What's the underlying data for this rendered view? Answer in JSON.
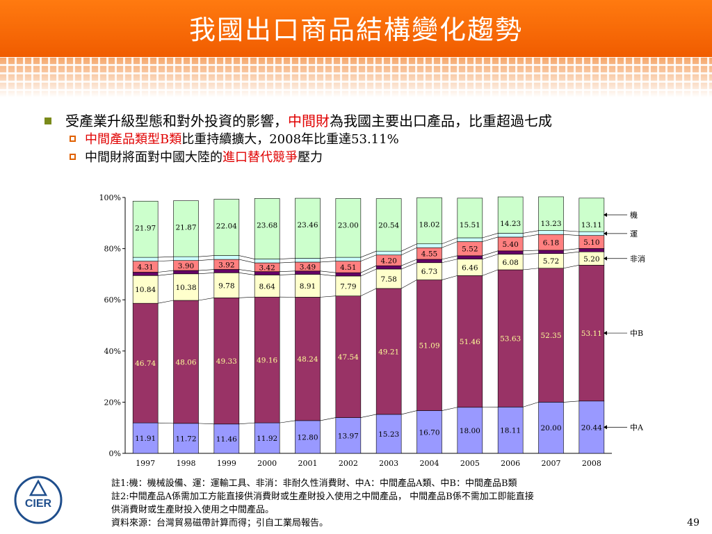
{
  "slide": {
    "title": "我國出口商品結構變化趨勢",
    "bullet1": {
      "before": "受產業升級型態和對外投資的影響，",
      "highlight": "中間財",
      "after": "為我國主要出口產品，比重超過七成"
    },
    "bullet2": {
      "highlight": "中間產品類型B類",
      "after": "比重持續擴大，2008年比重達53.11%"
    },
    "bullet3": {
      "before": "中間財將面對中國大陸的",
      "highlight": "進口替代競爭",
      "after": "壓力"
    },
    "notes": [
      "註1:機：機械設備、運：運輸工具、非消：非耐久性消費財、中A：中間產品A類、中B：中間產品B類",
      "註2:中間產品A係需加工方能直接供消費財或生產財投入使用之中間產品， 中間產品B係不需加工即能直接",
      "供消費財或生產財投入使用之中間產品。",
      "資料來源：台灣貿易磁帶計算而得；引自工業局報告。"
    ],
    "page_number": "49",
    "logo_text": "CIER"
  },
  "chart_data": {
    "type": "bar",
    "stacked": true,
    "categories": [
      "1997",
      "1998",
      "1999",
      "2000",
      "2001",
      "2002",
      "2003",
      "2004",
      "2005",
      "2006",
      "2007",
      "2008"
    ],
    "ylim": [
      0,
      100
    ],
    "yticks": [
      "0%",
      "20%",
      "40%",
      "60%",
      "80%",
      "100%"
    ],
    "series": [
      {
        "name": "中A",
        "color": "#9999ff",
        "label_color": "#000000",
        "values": [
          11.91,
          11.72,
          11.46,
          11.92,
          12.8,
          13.97,
          15.23,
          16.7,
          18.0,
          18.11,
          20.0,
          20.44
        ]
      },
      {
        "name": "中B",
        "color": "#993366",
        "label_color": "#ffff99",
        "values": [
          46.74,
          48.06,
          49.33,
          49.16,
          48.24,
          47.54,
          49.21,
          51.09,
          51.46,
          53.63,
          52.35,
          53.11
        ]
      },
      {
        "name": "",
        "color": "#ffffcc",
        "label_color": "#000000",
        "values": [
          10.84,
          10.38,
          9.78,
          8.64,
          8.91,
          7.79,
          7.58,
          6.73,
          6.46,
          6.08,
          5.72,
          5.2
        ]
      },
      {
        "name": "",
        "color": "#660066",
        "label_color": "#000000",
        "values": [
          1.3,
          1.3,
          1.3,
          1.3,
          1.3,
          1.3,
          1.3,
          1.3,
          1.3,
          1.3,
          1.3,
          1.3
        ]
      },
      {
        "name": "",
        "color": "#ff8080",
        "label_color": "#000000",
        "values": [
          4.31,
          3.9,
          3.92,
          3.42,
          3.49,
          4.51,
          4.2,
          4.55,
          5.52,
          5.4,
          6.18,
          5.1
        ]
      },
      {
        "name": "",
        "color": "#ccffff",
        "label_color": "#000000",
        "values": [
          1.5,
          1.5,
          1.5,
          1.5,
          1.5,
          1.5,
          1.5,
          1.5,
          1.5,
          1.5,
          1.5,
          1.5
        ]
      },
      {
        "name": "",
        "color": "#ccffcc",
        "label_color": "#000000",
        "values": [
          21.97,
          21.87,
          22.04,
          23.68,
          23.46,
          23.0,
          20.54,
          18.02,
          15.51,
          14.23,
          13.23,
          13.11
        ]
      }
    ],
    "legend_labels": [
      "機",
      "運",
      "非消",
      "中B",
      "中A"
    ]
  }
}
